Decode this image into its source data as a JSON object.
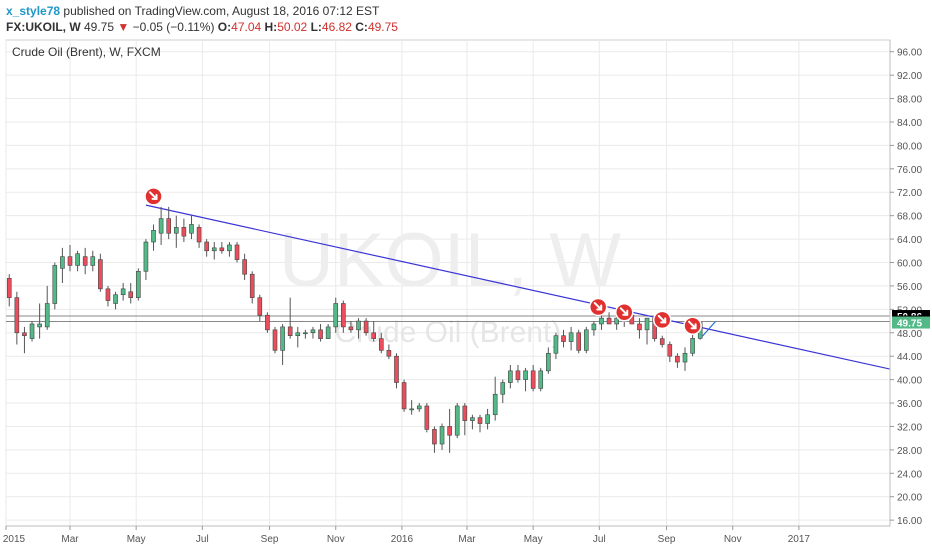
{
  "header": {
    "author": "x_style78",
    "published_text": "published on TradingView.com, August 18, 2016 07:12 EST",
    "symbol": "FX:UKOIL, W",
    "last": "49.75",
    "change_arrow": "▼",
    "change": "−0.05 (−0.11%)",
    "o_label": "O:",
    "o": "47.04",
    "h_label": "H:",
    "h": "50.02",
    "l_label": "L:",
    "l": "46.82",
    "c_label": "C:",
    "c": "49.75"
  },
  "chart": {
    "title": "Crude Oil (Brent), W, FXCM",
    "watermark": "UKOIL, W",
    "watermark_sub": "Crude Oil (Brent)"
  },
  "price_labels": [
    {
      "text": "50.86",
      "value": 50.86,
      "style": "black"
    },
    {
      "text": "49.92",
      "value": 49.92,
      "style": "black"
    },
    {
      "text": "49.75",
      "value": 49.75,
      "style": "green"
    }
  ],
  "chart_data": {
    "type": "candlestick",
    "title": "Crude Oil (Brent), W, FXCM",
    "y_ticks": [
      "96.00",
      "92.00",
      "88.00",
      "84.00",
      "80.00",
      "76.00",
      "72.00",
      "68.00",
      "64.00",
      "60.00",
      "56.00",
      "52.00",
      "48.00",
      "44.00",
      "40.00",
      "36.00",
      "32.00",
      "28.00",
      "24.00",
      "20.00",
      "16.00"
    ],
    "x_ticks": [
      "2015",
      "Mar",
      "May",
      "Jul",
      "Sep",
      "Nov",
      "2016",
      "Mar",
      "May",
      "Jul",
      "Sep",
      "Nov",
      "2017"
    ],
    "ylim": [
      15,
      98
    ],
    "xlim": [
      "2015-01-01",
      "2017-03-26"
    ],
    "grid": true,
    "candles": [
      {
        "date": "2015-01-04",
        "o": 57.3,
        "h": 58.0,
        "l": 52.5,
        "c": 54.0
      },
      {
        "date": "2015-01-11",
        "o": 54.0,
        "h": 55.0,
        "l": 46.0,
        "c": 48.0
      },
      {
        "date": "2015-01-18",
        "o": 48.0,
        "h": 49.0,
        "l": 44.5,
        "c": 47.5
      },
      {
        "date": "2015-01-25",
        "o": 47.0,
        "h": 50.0,
        "l": 46.5,
        "c": 49.5
      },
      {
        "date": "2015-02-01",
        "o": 49.0,
        "h": 53.0,
        "l": 47.0,
        "c": 49.5
      },
      {
        "date": "2015-02-08",
        "o": 49.0,
        "h": 56.0,
        "l": 48.5,
        "c": 53.0
      },
      {
        "date": "2015-02-15",
        "o": 53.0,
        "h": 60.0,
        "l": 52.0,
        "c": 59.5
      },
      {
        "date": "2015-02-22",
        "o": 59.0,
        "h": 62.5,
        "l": 56.5,
        "c": 61.0
      },
      {
        "date": "2015-03-01",
        "o": 61.0,
        "h": 63.0,
        "l": 58.5,
        "c": 59.5
      },
      {
        "date": "2015-03-08",
        "o": 59.5,
        "h": 62.0,
        "l": 58.5,
        "c": 61.5
      },
      {
        "date": "2015-03-15",
        "o": 61.0,
        "h": 62.5,
        "l": 58.0,
        "c": 59.5
      },
      {
        "date": "2015-03-22",
        "o": 59.5,
        "h": 62.0,
        "l": 58.5,
        "c": 61.0
      },
      {
        "date": "2015-03-29",
        "o": 60.5,
        "h": 61.5,
        "l": 55.0,
        "c": 55.5
      },
      {
        "date": "2015-04-05",
        "o": 55.5,
        "h": 56.0,
        "l": 52.5,
        "c": 53.5
      },
      {
        "date": "2015-04-12",
        "o": 53.0,
        "h": 55.0,
        "l": 52.0,
        "c": 54.5
      },
      {
        "date": "2015-04-19",
        "o": 54.5,
        "h": 56.5,
        "l": 53.5,
        "c": 55.5
      },
      {
        "date": "2015-04-26",
        "o": 55.0,
        "h": 56.5,
        "l": 53.0,
        "c": 54.0
      },
      {
        "date": "2015-05-03",
        "o": 54.0,
        "h": 59.0,
        "l": 53.5,
        "c": 58.5
      },
      {
        "date": "2015-05-10",
        "o": 58.5,
        "h": 64.0,
        "l": 57.0,
        "c": 63.5
      },
      {
        "date": "2015-05-17",
        "o": 63.5,
        "h": 66.5,
        "l": 62.0,
        "c": 65.5
      },
      {
        "date": "2015-05-24",
        "o": 65.0,
        "h": 69.5,
        "l": 63.0,
        "c": 67.5
      },
      {
        "date": "2015-05-31",
        "o": 67.5,
        "h": 69.5,
        "l": 64.0,
        "c": 65.0
      },
      {
        "date": "2015-06-07",
        "o": 65.0,
        "h": 68.0,
        "l": 62.5,
        "c": 66.0
      },
      {
        "date": "2015-06-14",
        "o": 66.0,
        "h": 67.5,
        "l": 63.5,
        "c": 64.5
      },
      {
        "date": "2015-06-21",
        "o": 65.0,
        "h": 68.0,
        "l": 64.0,
        "c": 66.5
      },
      {
        "date": "2015-06-28",
        "o": 66.0,
        "h": 66.5,
        "l": 62.5,
        "c": 63.5
      },
      {
        "date": "2015-07-05",
        "o": 63.5,
        "h": 64.0,
        "l": 61.0,
        "c": 62.0
      },
      {
        "date": "2015-07-12",
        "o": 62.0,
        "h": 63.5,
        "l": 60.5,
        "c": 62.5
      },
      {
        "date": "2015-07-19",
        "o": 62.5,
        "h": 63.5,
        "l": 61.5,
        "c": 62.0
      },
      {
        "date": "2015-07-26",
        "o": 62.0,
        "h": 63.5,
        "l": 61.0,
        "c": 63.0
      },
      {
        "date": "2015-08-02",
        "o": 63.0,
        "h": 63.5,
        "l": 60.0,
        "c": 60.5
      },
      {
        "date": "2015-08-09",
        "o": 60.5,
        "h": 61.5,
        "l": 57.0,
        "c": 58.0
      },
      {
        "date": "2015-08-16",
        "o": 58.0,
        "h": 58.5,
        "l": 53.0,
        "c": 54.0
      },
      {
        "date": "2015-08-23",
        "o": 54.0,
        "h": 54.5,
        "l": 50.0,
        "c": 51.0
      },
      {
        "date": "2015-08-30",
        "o": 51.0,
        "h": 51.5,
        "l": 48.0,
        "c": 48.5
      },
      {
        "date": "2015-09-06",
        "o": 48.5,
        "h": 49.0,
        "l": 44.5,
        "c": 45.0
      },
      {
        "date": "2015-09-13",
        "o": 45.0,
        "h": 49.5,
        "l": 42.5,
        "c": 49.0
      },
      {
        "date": "2015-09-20",
        "o": 49.0,
        "h": 54.0,
        "l": 47.0,
        "c": 47.5
      },
      {
        "date": "2015-09-27",
        "o": 47.5,
        "h": 49.0,
        "l": 45.5,
        "c": 48.0
      },
      {
        "date": "2015-10-04",
        "o": 48.0,
        "h": 48.5,
        "l": 47.0,
        "c": 48.0
      },
      {
        "date": "2015-10-11",
        "o": 48.0,
        "h": 49.0,
        "l": 47.0,
        "c": 48.5
      },
      {
        "date": "2015-10-18",
        "o": 48.5,
        "h": 49.5,
        "l": 46.5,
        "c": 47.0
      },
      {
        "date": "2015-10-25",
        "o": 47.0,
        "h": 49.5,
        "l": 47.0,
        "c": 49.0
      },
      {
        "date": "2015-11-01",
        "o": 49.0,
        "h": 54.0,
        "l": 48.0,
        "c": 53.0
      },
      {
        "date": "2015-11-08",
        "o": 53.0,
        "h": 53.5,
        "l": 48.0,
        "c": 49.0
      },
      {
        "date": "2015-11-15",
        "o": 49.0,
        "h": 50.0,
        "l": 48.0,
        "c": 48.5
      },
      {
        "date": "2015-11-22",
        "o": 48.5,
        "h": 50.5,
        "l": 47.0,
        "c": 50.0
      },
      {
        "date": "2015-11-29",
        "o": 50.0,
        "h": 50.5,
        "l": 47.5,
        "c": 48.0
      },
      {
        "date": "2015-12-06",
        "o": 48.0,
        "h": 50.0,
        "l": 46.5,
        "c": 47.0
      },
      {
        "date": "2015-12-13",
        "o": 47.0,
        "h": 48.0,
        "l": 44.5,
        "c": 45.0
      },
      {
        "date": "2015-12-20",
        "o": 45.0,
        "h": 46.0,
        "l": 43.5,
        "c": 44.0
      },
      {
        "date": "2015-12-27",
        "o": 44.0,
        "h": 44.5,
        "l": 38.5,
        "c": 39.5
      },
      {
        "date": "2016-01-03",
        "o": 39.5,
        "h": 40.0,
        "l": 34.5,
        "c": 35.0
      },
      {
        "date": "2016-01-10",
        "o": 35.0,
        "h": 36.5,
        "l": 34.0,
        "c": 35.0
      },
      {
        "date": "2016-01-17",
        "o": 35.0,
        "h": 36.0,
        "l": 34.5,
        "c": 35.5
      },
      {
        "date": "2016-01-24",
        "o": 35.5,
        "h": 36.0,
        "l": 31.0,
        "c": 31.5
      },
      {
        "date": "2016-01-31",
        "o": 31.5,
        "h": 32.0,
        "l": 27.5,
        "c": 29.0
      },
      {
        "date": "2016-02-07",
        "o": 29.0,
        "h": 32.5,
        "l": 28.0,
        "c": 32.0
      },
      {
        "date": "2016-02-14",
        "o": 32.0,
        "h": 35.0,
        "l": 27.5,
        "c": 30.5
      },
      {
        "date": "2016-02-21",
        "o": 30.5,
        "h": 36.0,
        "l": 30.0,
        "c": 35.5
      },
      {
        "date": "2016-02-28",
        "o": 35.5,
        "h": 36.0,
        "l": 30.5,
        "c": 33.0
      },
      {
        "date": "2016-03-06",
        "o": 33.0,
        "h": 34.0,
        "l": 31.5,
        "c": 33.5
      },
      {
        "date": "2016-03-13",
        "o": 33.5,
        "h": 34.0,
        "l": 31.0,
        "c": 32.5
      },
      {
        "date": "2016-03-20",
        "o": 32.5,
        "h": 35.0,
        "l": 31.5,
        "c": 34.0
      },
      {
        "date": "2016-03-27",
        "o": 34.0,
        "h": 40.5,
        "l": 33.0,
        "c": 37.5
      },
      {
        "date": "2016-04-03",
        "o": 37.5,
        "h": 40.0,
        "l": 36.0,
        "c": 39.5
      },
      {
        "date": "2016-04-10",
        "o": 39.5,
        "h": 42.5,
        "l": 38.5,
        "c": 41.5
      },
      {
        "date": "2016-04-17",
        "o": 41.5,
        "h": 42.5,
        "l": 39.5,
        "c": 40.0
      },
      {
        "date": "2016-04-24",
        "o": 40.0,
        "h": 42.0,
        "l": 38.0,
        "c": 41.5
      },
      {
        "date": "2016-05-01",
        "o": 41.5,
        "h": 42.5,
        "l": 38.0,
        "c": 38.5
      },
      {
        "date": "2016-05-08",
        "o": 38.5,
        "h": 42.0,
        "l": 38.0,
        "c": 41.5
      },
      {
        "date": "2016-05-15",
        "o": 41.5,
        "h": 45.5,
        "l": 41.0,
        "c": 44.5
      },
      {
        "date": "2016-05-22",
        "o": 44.5,
        "h": 48.0,
        "l": 43.5,
        "c": 47.5
      },
      {
        "date": "2016-05-29",
        "o": 47.5,
        "h": 48.5,
        "l": 45.5,
        "c": 46.5
      },
      {
        "date": "2016-06-05",
        "o": 46.5,
        "h": 49.0,
        "l": 45.0,
        "c": 48.0
      },
      {
        "date": "2016-06-12",
        "o": 48.0,
        "h": 48.5,
        "l": 44.5,
        "c": 45.0
      },
      {
        "date": "2016-06-19",
        "o": 45.0,
        "h": 49.0,
        "l": 44.5,
        "c": 48.5
      },
      {
        "date": "2016-06-26",
        "o": 48.5,
        "h": 50.0,
        "l": 47.5,
        "c": 49.5
      },
      {
        "date": "2016-07-03",
        "o": 49.5,
        "h": 51.0,
        "l": 48.5,
        "c": 50.5
      },
      {
        "date": "2016-07-10",
        "o": 50.5,
        "h": 51.5,
        "l": 49.5,
        "c": 49.5
      },
      {
        "date": "2016-07-17",
        "o": 49.5,
        "h": 51.0,
        "l": 48.5,
        "c": 50.5
      },
      {
        "date": "2016-07-24",
        "o": 50.5,
        "h": 53.0,
        "l": 49.0,
        "c": 51.0
      },
      {
        "date": "2016-07-31",
        "o": 51.0,
        "h": 51.5,
        "l": 49.5,
        "c": 49.5
      },
      {
        "date": "2016-08-07",
        "o": 49.5,
        "h": 50.5,
        "l": 47.0,
        "c": 48.5
      },
      {
        "date": "2016-08-14",
        "o": 48.5,
        "h": 50.5,
        "l": 46.0,
        "c": 50.5
      },
      {
        "date": "2016-08-21",
        "o": 50.5,
        "h": 50.5,
        "l": 46.5,
        "c": 47.0
      },
      {
        "date": "2016-08-28",
        "o": 47.0,
        "h": 47.5,
        "l": 45.5,
        "c": 46.0
      },
      {
        "date": "2016-09-04",
        "o": 46.0,
        "h": 46.5,
        "l": 43.0,
        "c": 44.0
      },
      {
        "date": "2016-09-11",
        "o": 44.0,
        "h": 44.5,
        "l": 42.0,
        "c": 43.0
      },
      {
        "date": "2016-09-18",
        "o": 43.0,
        "h": 45.5,
        "l": 41.5,
        "c": 44.5
      },
      {
        "date": "2016-09-25",
        "o": 44.5,
        "h": 48.0,
        "l": 44.0,
        "c": 47.04
      },
      {
        "date": "2016-10-02",
        "o": 47.04,
        "h": 50.02,
        "l": 46.82,
        "c": 49.75
      }
    ],
    "trendline": {
      "start": {
        "date": "2015-05-10",
        "value": 69.8
      },
      "end": {
        "date": "2017-03-26",
        "value": 41.8
      }
    },
    "horizontal_lines": [
      50.86,
      49.92
    ],
    "markers": [
      {
        "date": "2015-05-17",
        "value": 71.3
      },
      {
        "date": "2016-06-30",
        "value": 52.4
      },
      {
        "date": "2016-07-24",
        "value": 51.5
      },
      {
        "date": "2016-08-28",
        "value": 50.2
      },
      {
        "date": "2016-09-25",
        "value": 49.2
      }
    ],
    "arrow": {
      "from": {
        "date": "2016-10-04",
        "value": 47.4
      },
      "to": {
        "date": "2016-10-16",
        "value": 49.9
      }
    },
    "colors": {
      "up": "#53b987",
      "down": "#eb4d5c",
      "trendline": "#3c35d6",
      "grid": "#eaeaea",
      "hline": "#888888",
      "label_green": "#53b987",
      "marker": "#e0302f"
    }
  }
}
